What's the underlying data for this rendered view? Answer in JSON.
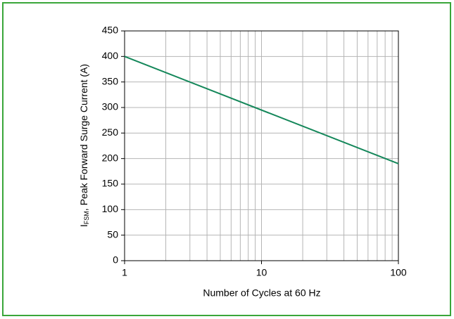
{
  "chart_data": {
    "type": "line",
    "x_label": "Number of Cycles at 60 Hz",
    "y_label": {
      "main": "I",
      "sub": "FSM",
      "rest": ", Peak Forward Surge Current (A)"
    },
    "x": [
      1,
      100
    ],
    "series": [
      {
        "color": "#14875a",
        "values": [
          400,
          190
        ]
      }
    ],
    "xlim": [
      1,
      100
    ],
    "xticks": [
      1,
      10,
      100
    ],
    "xminorticks": [
      2,
      3,
      4,
      5,
      6,
      7,
      8,
      9,
      20,
      30,
      40,
      50,
      60,
      70,
      80,
      90
    ],
    "xscale": "log",
    "ylim": [
      0,
      450
    ],
    "yticks": [
      0,
      50,
      100,
      150,
      200,
      250,
      300,
      350,
      400,
      450
    ],
    "grid": true
  }
}
